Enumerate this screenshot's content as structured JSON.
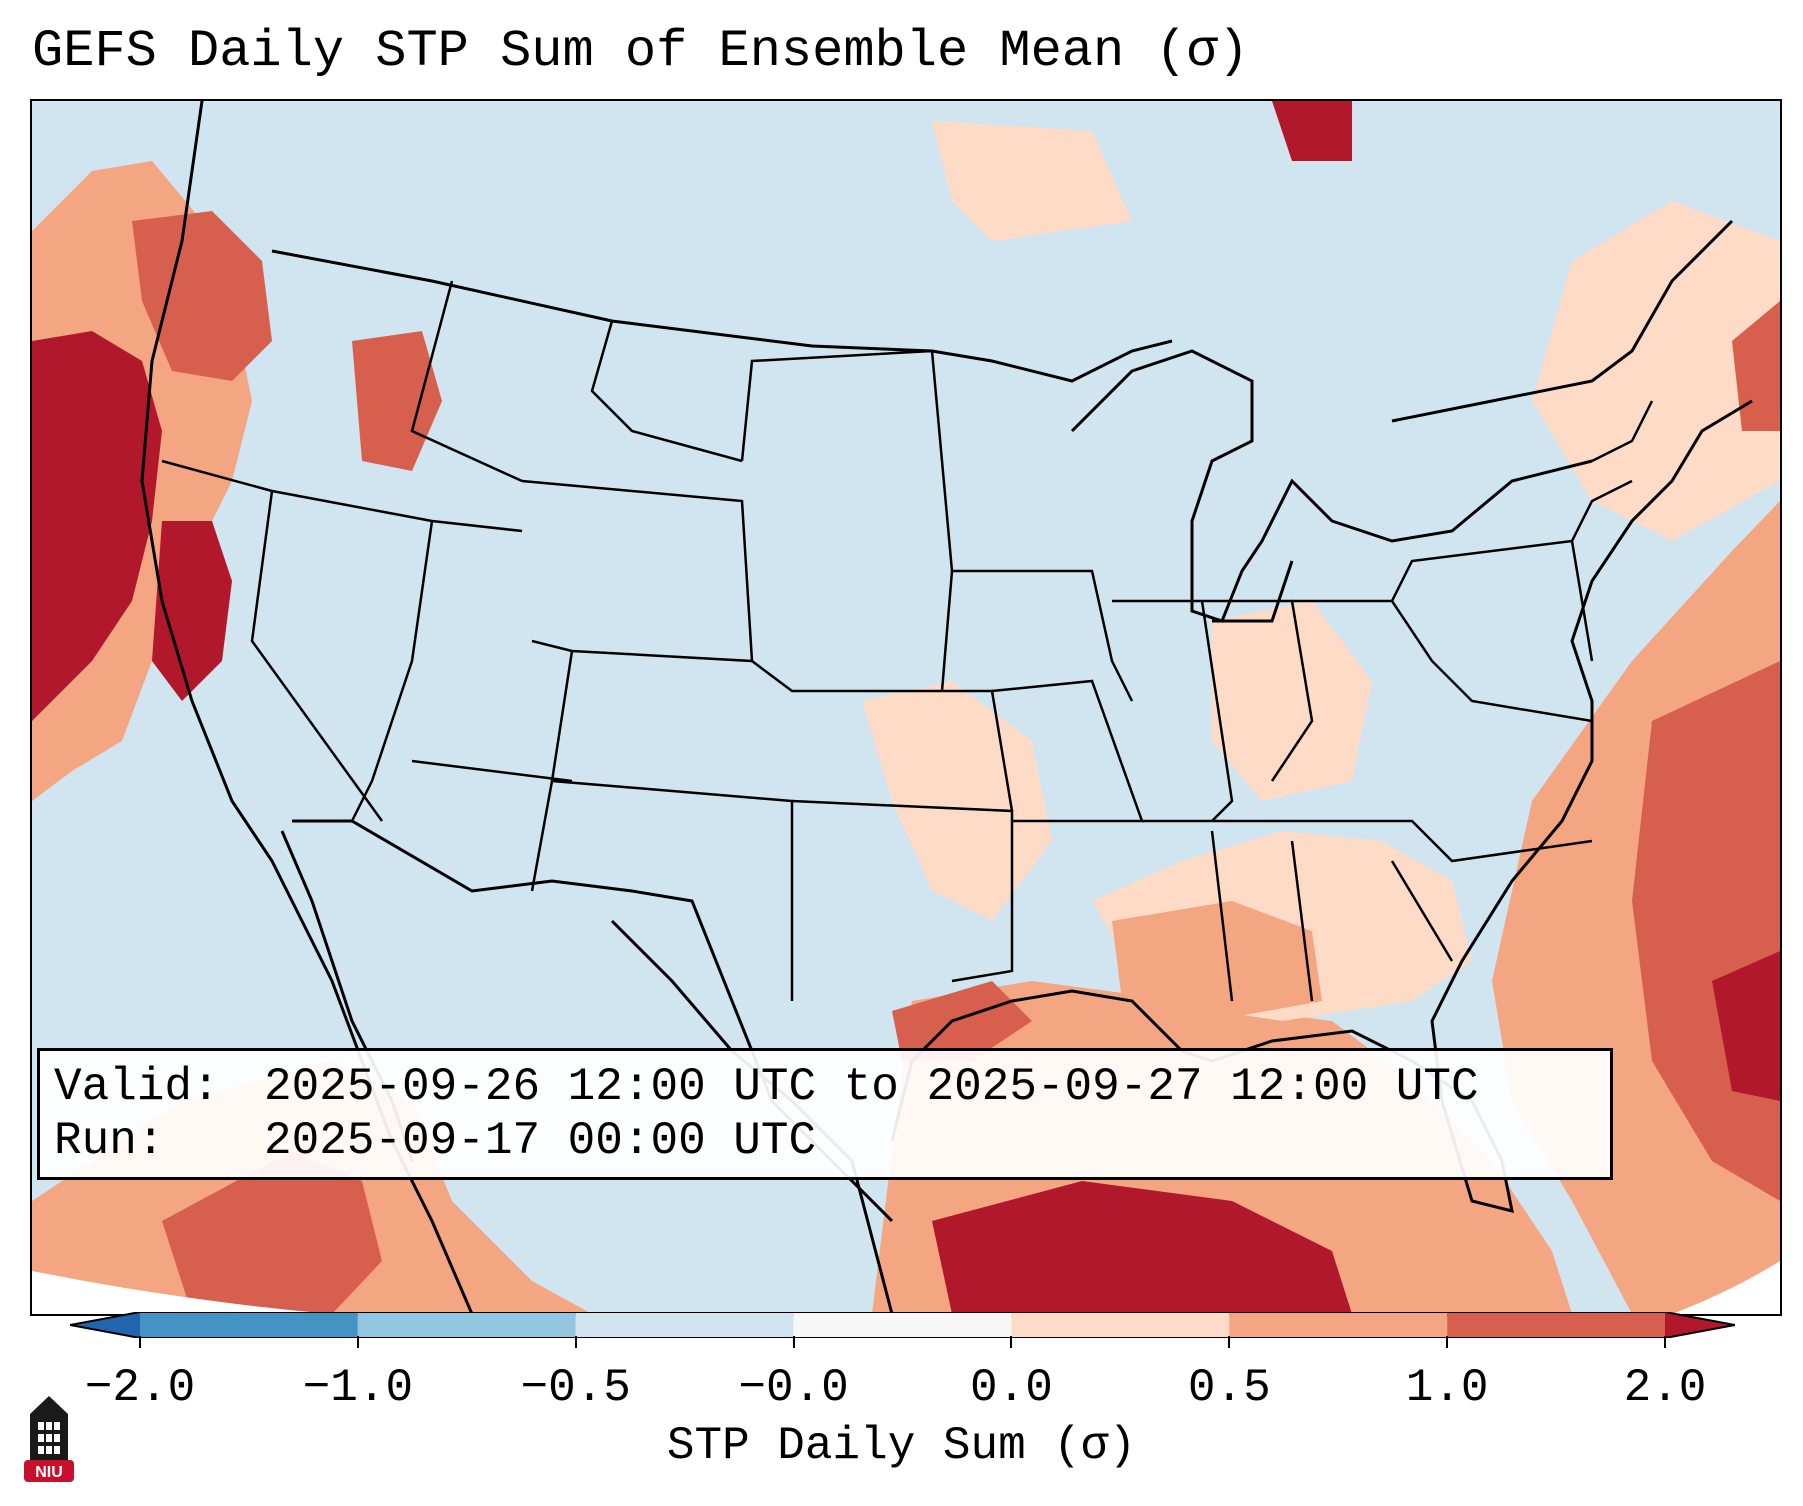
{
  "title": "GEFS Daily STP Sum of Ensemble Mean (σ)",
  "info": {
    "valid_label": "Valid:",
    "valid_value": "2025-09-26 12:00 UTC to 2025-09-27 12:00 UTC",
    "run_label": "Run:",
    "run_value": "2025-09-17 00:00 UTC"
  },
  "colorbar": {
    "label": "STP Daily Sum (σ)",
    "ticks": [
      "−2.0",
      "−1.0",
      "−0.5",
      "−0.0",
      "0.0",
      "0.5",
      "1.0",
      "2.0"
    ],
    "bins": [
      {
        "range": "<-2.0",
        "color": "#2166ac"
      },
      {
        "range": "-2.0 to -1.0",
        "color": "#4393c3"
      },
      {
        "range": "-1.0 to -0.5",
        "color": "#92c5de"
      },
      {
        "range": "-0.5 to -0.0",
        "color": "#d1e5f0"
      },
      {
        "range": "-0.0 to 0.0",
        "color": "#f7f7f7"
      },
      {
        "range": "0.0 to 0.5",
        "color": "#fddbc7"
      },
      {
        "range": "0.5 to 1.0",
        "color": "#f4a582"
      },
      {
        "range": "1.0 to 2.0",
        "color": "#d6604d"
      },
      {
        "range": ">2.0",
        "color": "#b2182b"
      }
    ]
  },
  "logo": {
    "text": "NIU",
    "color": "#c8102e",
    "icon": "university-tower-icon"
  }
}
